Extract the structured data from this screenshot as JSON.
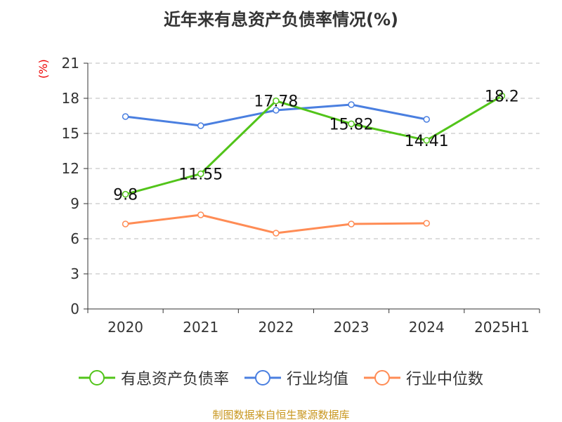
{
  "chart_data": {
    "type": "line",
    "title": "近年来有息资产负债率情况(%)",
    "ylabel": "(%)",
    "categories": [
      "2020",
      "2021",
      "2022",
      "2023",
      "2024",
      "2025H1"
    ],
    "ylim": [
      0,
      21
    ],
    "yticks": [
      0,
      3,
      6,
      9,
      12,
      15,
      18,
      21
    ],
    "grid": true,
    "legend_position": "bottom",
    "series": [
      {
        "name": "有息资产负债率",
        "color": "#52c41a",
        "values": [
          9.8,
          11.55,
          17.78,
          15.82,
          14.41,
          18.2
        ],
        "labels": [
          "9.8",
          "11.55",
          "17.78",
          "15.82",
          "14.41",
          "18.2"
        ]
      },
      {
        "name": "行业均值",
        "color": "#4a7fe0",
        "values": [
          16.44,
          15.66,
          16.98,
          17.46,
          16.2,
          null
        ]
      },
      {
        "name": "行业中位数",
        "color": "#ff8c55",
        "values": [
          7.26,
          8.04,
          6.48,
          7.26,
          7.32,
          null
        ]
      }
    ]
  },
  "source": "制图数据来自恒生聚源数据库"
}
